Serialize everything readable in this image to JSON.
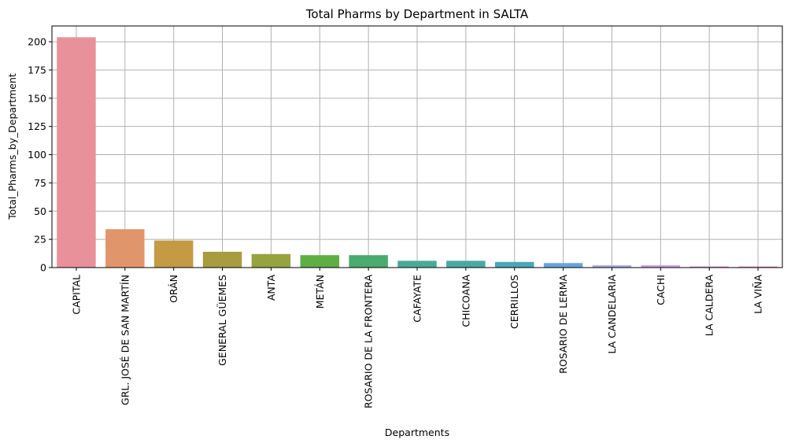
{
  "chart_data": {
    "type": "bar",
    "title": "Total Pharms by Department in SALTA",
    "xlabel": "Departments",
    "ylabel": "Total_Pharms_by_Department",
    "ylim": [
      0,
      214
    ],
    "yticks": [
      0,
      25,
      50,
      75,
      100,
      125,
      150,
      175,
      200
    ],
    "grid": true,
    "categories": [
      "CAPITAL",
      "GRL. JOSÉ DE SAN MARTÍN",
      "ORÁN",
      "GENERAL GÜEMES",
      "ANTA",
      "METÁN",
      "ROSARIO DE LA FRONTERA",
      "CAFAYATE",
      "CHICOANA",
      "CERRILLOS",
      "ROSARIO DE LERMA",
      "LA CANDELARIA",
      "CACHI",
      "LA CALDERA",
      "LA VIÑA"
    ],
    "values": [
      204,
      34,
      24,
      14,
      12,
      11,
      11,
      6,
      6,
      5,
      4,
      2,
      2,
      1,
      1
    ],
    "colors": [
      "#e8919a",
      "#e0966a",
      "#c49a45",
      "#a89c41",
      "#97a33f",
      "#5fae45",
      "#4aac6e",
      "#48ab93",
      "#49a9a3",
      "#4aa6b7",
      "#67a6dc",
      "#a6a8ec",
      "#c99ae8",
      "#e08ddb",
      "#ea8fc4"
    ]
  }
}
